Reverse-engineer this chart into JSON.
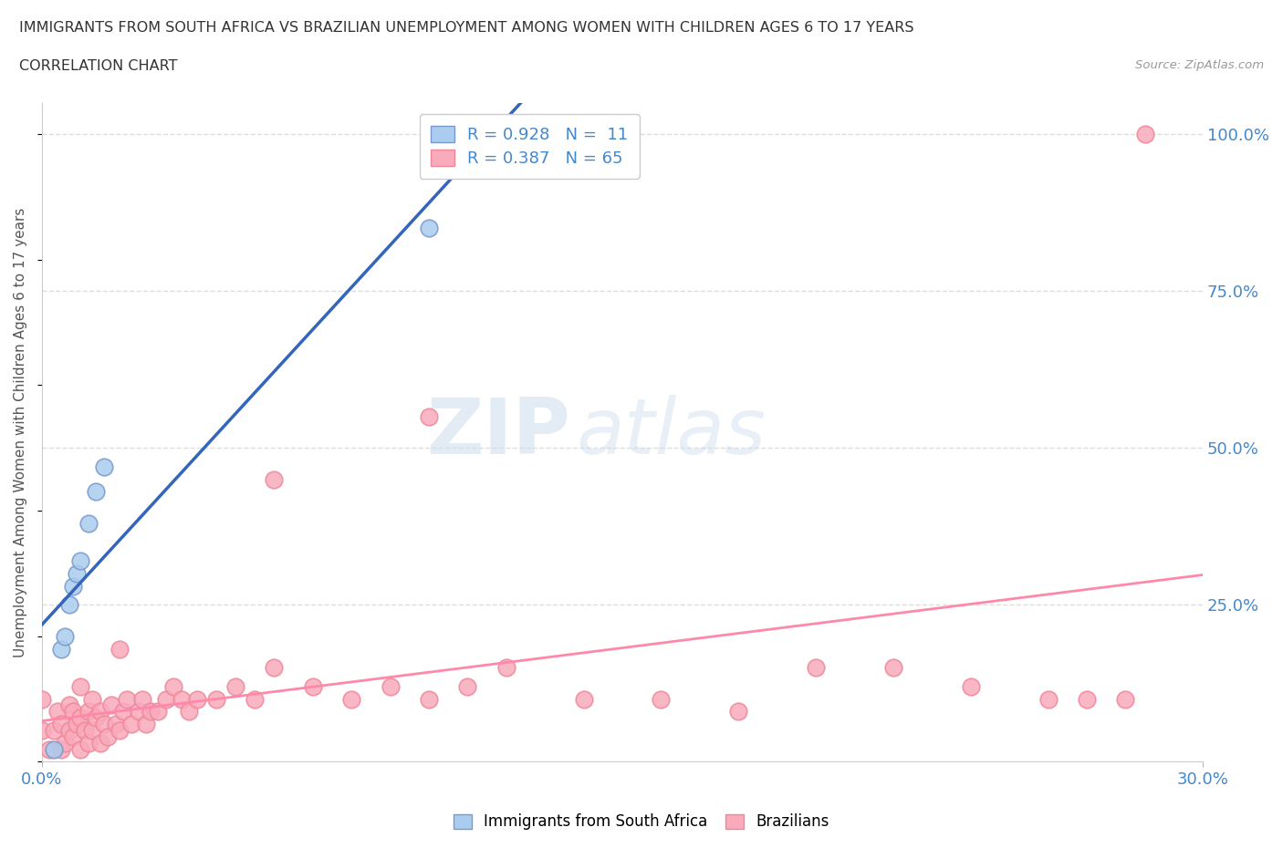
{
  "title_line1": "IMMIGRANTS FROM SOUTH AFRICA VS BRAZILIAN UNEMPLOYMENT AMONG WOMEN WITH CHILDREN AGES 6 TO 17 YEARS",
  "title_line2": "CORRELATION CHART",
  "source_text": "Source: ZipAtlas.com",
  "ylabel": "Unemployment Among Women with Children Ages 6 to 17 years",
  "xlim": [
    0.0,
    0.3
  ],
  "ylim": [
    0.0,
    1.05
  ],
  "y_tick_positions": [
    0.25,
    0.5,
    0.75,
    1.0
  ],
  "watermark_zip": "ZIP",
  "watermark_atlas": "atlas",
  "color_blue_fill": "#AACCEE",
  "color_blue_edge": "#7799CC",
  "color_pink_fill": "#F9AABB",
  "color_pink_edge": "#EE8899",
  "line_color_blue": "#3366BB",
  "line_color_pink": "#FF88AA",
  "bg_color": "#FFFFFF",
  "grid_color": "#DDDDDD",
  "sa_x": [
    0.003,
    0.005,
    0.006,
    0.007,
    0.008,
    0.009,
    0.01,
    0.012,
    0.014,
    0.016,
    0.1
  ],
  "sa_y": [
    0.02,
    0.18,
    0.2,
    0.25,
    0.28,
    0.3,
    0.32,
    0.38,
    0.43,
    0.47,
    0.85
  ],
  "br_x": [
    0.0,
    0.0,
    0.002,
    0.003,
    0.004,
    0.005,
    0.005,
    0.006,
    0.007,
    0.007,
    0.008,
    0.008,
    0.009,
    0.01,
    0.01,
    0.01,
    0.011,
    0.012,
    0.012,
    0.013,
    0.013,
    0.014,
    0.015,
    0.015,
    0.016,
    0.017,
    0.018,
    0.019,
    0.02,
    0.021,
    0.022,
    0.023,
    0.025,
    0.026,
    0.027,
    0.028,
    0.03,
    0.032,
    0.034,
    0.036,
    0.038,
    0.04,
    0.045,
    0.05,
    0.055,
    0.06,
    0.07,
    0.08,
    0.09,
    0.1,
    0.11,
    0.12,
    0.14,
    0.16,
    0.18,
    0.2,
    0.22,
    0.24,
    0.26,
    0.27,
    0.28,
    0.285,
    0.1,
    0.06,
    0.02
  ],
  "br_y": [
    0.05,
    0.1,
    0.02,
    0.05,
    0.08,
    0.02,
    0.06,
    0.03,
    0.05,
    0.09,
    0.04,
    0.08,
    0.06,
    0.02,
    0.07,
    0.12,
    0.05,
    0.03,
    0.08,
    0.05,
    0.1,
    0.07,
    0.03,
    0.08,
    0.06,
    0.04,
    0.09,
    0.06,
    0.05,
    0.08,
    0.1,
    0.06,
    0.08,
    0.1,
    0.06,
    0.08,
    0.08,
    0.1,
    0.12,
    0.1,
    0.08,
    0.1,
    0.1,
    0.12,
    0.1,
    0.15,
    0.12,
    0.1,
    0.12,
    0.1,
    0.12,
    0.15,
    0.1,
    0.1,
    0.08,
    0.15,
    0.15,
    0.12,
    0.1,
    0.1,
    0.1,
    1.0,
    0.55,
    0.45,
    0.18
  ]
}
